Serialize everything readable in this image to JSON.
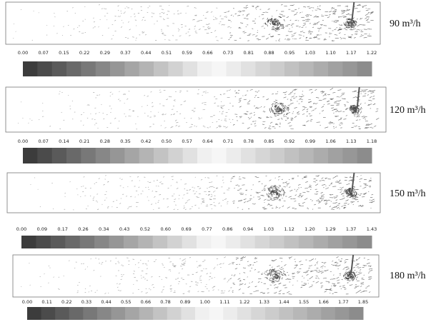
{
  "panels": [
    {
      "label": "90 m³/h",
      "colorbar": [
        "0.00",
        "0.07",
        "0.15",
        "0.22",
        "0.29",
        "0.37",
        "0.44",
        "0.51",
        "0.59",
        "0.66",
        "0.73",
        "0.81",
        "0.88",
        "0.95",
        "1.03",
        "1.10",
        "1.17",
        "1.22"
      ]
    },
    {
      "label": "120 m³/h",
      "colorbar": [
        "0.00",
        "0.07",
        "0.14",
        "0.21",
        "0.28",
        "0.35",
        "0.42",
        "0.50",
        "0.57",
        "0.64",
        "0.71",
        "0.78",
        "0.85",
        "0.92",
        "0.99",
        "1.06",
        "1.13",
        "1.18"
      ]
    },
    {
      "label": "150 m³/h",
      "colorbar": [
        "0.00",
        "0.09",
        "0.17",
        "0.26",
        "0.34",
        "0.43",
        "0.52",
        "0.60",
        "0.69",
        "0.77",
        "0.86",
        "0.94",
        "1.03",
        "1.12",
        "1.20",
        "1.29",
        "1.37",
        "1.43"
      ]
    },
    {
      "label": "180 m³/h",
      "colorbar": [
        "0.00",
        "0.11",
        "0.22",
        "0.33",
        "0.44",
        "0.55",
        "0.66",
        "0.78",
        "0.89",
        "1.00",
        "1.11",
        "1.22",
        "1.33",
        "1.44",
        "1.55",
        "1.66",
        "1.77",
        "1.85"
      ]
    }
  ]
}
